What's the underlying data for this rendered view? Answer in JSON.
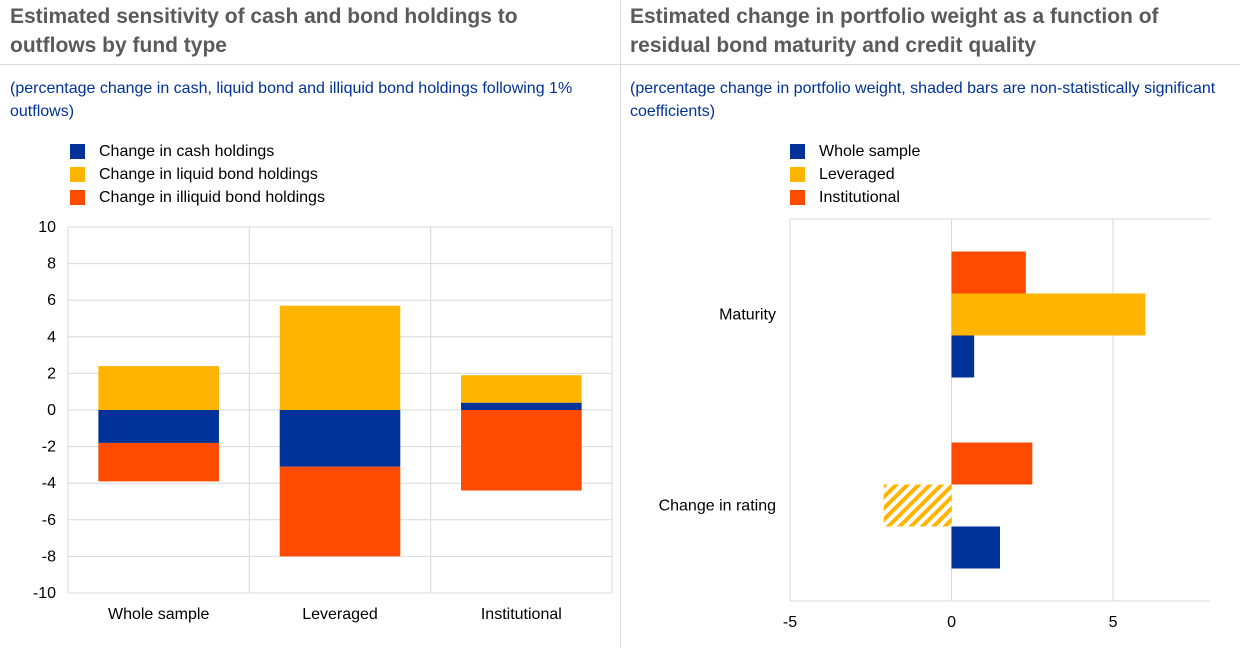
{
  "colors": {
    "whole": "#003299",
    "liquid": "#ffb400",
    "illiquid": "#ff4b00",
    "grid": "#d9d9d9",
    "title": "#5a5a5a",
    "subtitle": "#003299"
  },
  "left": {
    "title": "Estimated sensitivity of cash and bond holdings to outflows by fund type",
    "subtitle": "(percentage change in cash, liquid bond and illiquid bond holdings following 1% outflows)",
    "legend": [
      {
        "label": "Change in cash holdings",
        "color": "#003299",
        "icon": "square"
      },
      {
        "label": "Change in liquid bond holdings",
        "color": "#ffb400",
        "icon": "square"
      },
      {
        "label": "Change in illiquid bond holdings",
        "color": "#ff4b00",
        "icon": "square"
      }
    ]
  },
  "right": {
    "title": "Estimated change in portfolio weight as a function of residual bond maturity and credit quality",
    "subtitle": "(percentage change in portfolio weight, shaded bars are non-statistically significant coefficients)",
    "legend": [
      {
        "label": "Whole sample",
        "color": "#003299",
        "icon": "square"
      },
      {
        "label": "Leveraged",
        "color": "#ffb400",
        "icon": "square"
      },
      {
        "label": "Institutional",
        "color": "#ff4b00",
        "icon": "square"
      }
    ]
  },
  "chart_data": [
    {
      "type": "bar",
      "stacked": true,
      "orientation": "vertical",
      "title": "Estimated sensitivity of cash and bond holdings to outflows by fund type",
      "subtitle": "(percentage change in cash, liquid bond and illiquid bond holdings following 1% outflows)",
      "categories": [
        "Whole sample",
        "Leveraged",
        "Institutional"
      ],
      "series": [
        {
          "name": "Change in cash holdings",
          "values": [
            -1.8,
            -3.1,
            0.4
          ]
        },
        {
          "name": "Change in liquid bond holdings",
          "values": [
            2.4,
            5.7,
            1.5
          ]
        },
        {
          "name": "Change in illiquid bond holdings",
          "values": [
            -2.1,
            -4.9,
            -4.4
          ]
        }
      ],
      "ylim": [
        -10,
        10
      ],
      "yticks": [
        "10",
        "8",
        "6",
        "4",
        "2",
        "0",
        "-2",
        "-4",
        "-6",
        "-8",
        "-10"
      ],
      "yticks_values": [
        10,
        8,
        6,
        4,
        2,
        0,
        -2,
        -4,
        -6,
        -8,
        -10
      ],
      "grid": true,
      "legend_position": "top-left"
    },
    {
      "type": "bar",
      "stacked": false,
      "orientation": "horizontal",
      "title": "Estimated change in portfolio weight as a function of residual bond maturity and credit quality",
      "subtitle": "(percentage change in portfolio weight, shaded bars are non-statistically significant coefficients)",
      "categories": [
        "Maturity",
        "Change in rating"
      ],
      "series": [
        {
          "name": "Whole sample",
          "values": [
            0.7,
            1.5
          ],
          "significant": [
            true,
            true
          ]
        },
        {
          "name": "Leveraged",
          "values": [
            6.0,
            -2.1
          ],
          "significant": [
            true,
            false
          ]
        },
        {
          "name": "Institutional",
          "values": [
            2.3,
            2.5
          ],
          "significant": [
            true,
            true
          ]
        }
      ],
      "xlim": [
        -5,
        8
      ],
      "xticks": [
        "-5",
        "0",
        "5"
      ],
      "xticks_values": [
        -5,
        0,
        5
      ],
      "grid": true,
      "legend_position": "top"
    }
  ]
}
